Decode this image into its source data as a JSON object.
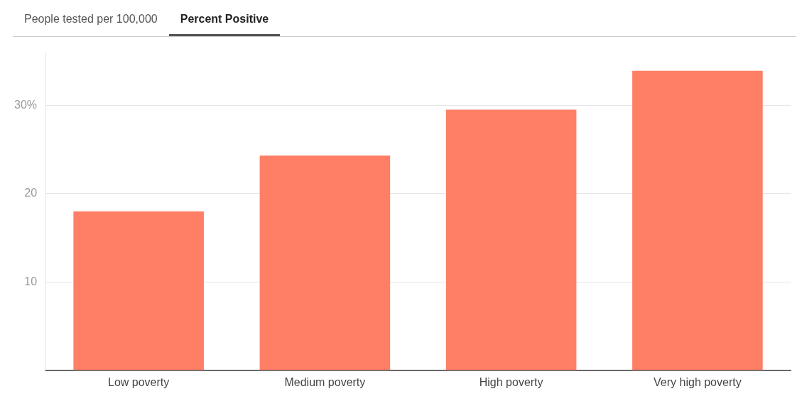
{
  "chart_data": {
    "type": "bar",
    "title": "Percent Positive",
    "annotations": [
      "People tested per 100,000"
    ],
    "categories": [
      "Low poverty",
      "Medium poverty",
      "High poverty",
      "Very high poverty"
    ],
    "values": [
      18,
      24.3,
      29.5,
      33.9
    ],
    "color": "#ff7f66",
    "yticks": [
      {
        "value": 0,
        "label": null
      },
      10,
      20,
      {
        "value": 30,
        "label": "30%"
      }
    ],
    "ylim": [
      0,
      36
    ],
    "grid": "y",
    "legend": false
  }
}
